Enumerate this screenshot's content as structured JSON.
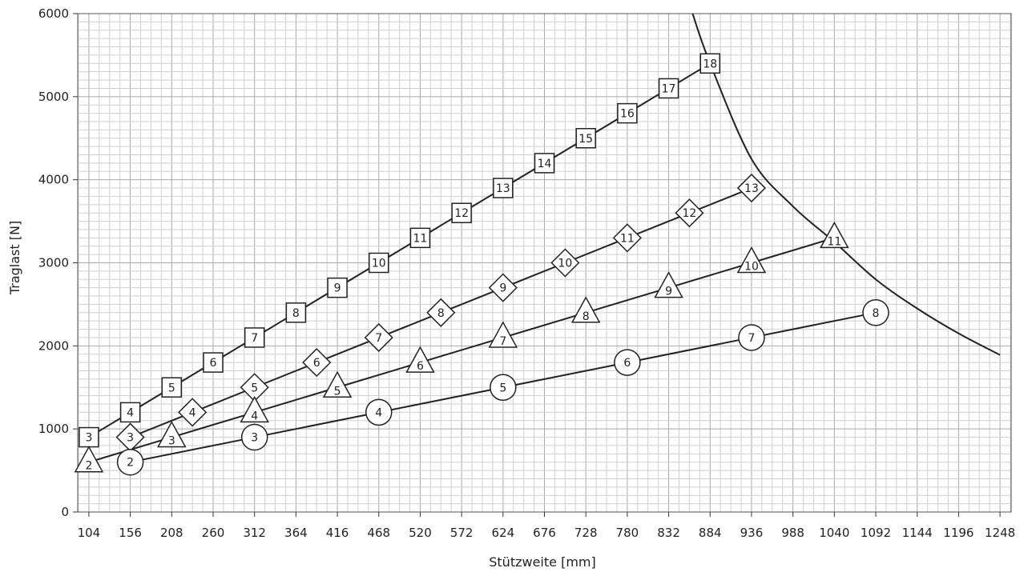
{
  "chart_data": {
    "type": "line",
    "title": "",
    "xlabel": "Stützweite [mm]",
    "ylabel": "Traglast [N]",
    "xlim": [
      90,
      1262
    ],
    "ylim": [
      0,
      6000
    ],
    "grid": true,
    "x_ticks": [
      104,
      156,
      208,
      260,
      312,
      364,
      416,
      468,
      520,
      572,
      624,
      676,
      728,
      780,
      832,
      884,
      936,
      988,
      1040,
      1092,
      1144,
      1196,
      1248
    ],
    "y_ticks": [
      0,
      1000,
      2000,
      3000,
      4000,
      5000,
      6000
    ],
    "series": [
      {
        "marker": "square",
        "points": [
          {
            "x": 104,
            "y": 900,
            "label": "3"
          },
          {
            "x": 156,
            "y": 1200,
            "label": "4"
          },
          {
            "x": 208,
            "y": 1500,
            "label": "5"
          },
          {
            "x": 260,
            "y": 1800,
            "label": "6"
          },
          {
            "x": 312,
            "y": 2100,
            "label": "7"
          },
          {
            "x": 364,
            "y": 2400,
            "label": "8"
          },
          {
            "x": 416,
            "y": 2700,
            "label": "9"
          },
          {
            "x": 468,
            "y": 3000,
            "label": "10"
          },
          {
            "x": 520,
            "y": 3300,
            "label": "11"
          },
          {
            "x": 572,
            "y": 3600,
            "label": "12"
          },
          {
            "x": 624,
            "y": 3900,
            "label": "13"
          },
          {
            "x": 676,
            "y": 4200,
            "label": "14"
          },
          {
            "x": 728,
            "y": 4500,
            "label": "15"
          },
          {
            "x": 780,
            "y": 4800,
            "label": "16"
          },
          {
            "x": 832,
            "y": 5100,
            "label": "17"
          },
          {
            "x": 884,
            "y": 5400,
            "label": "18"
          }
        ]
      },
      {
        "marker": "diamond",
        "points": [
          {
            "x": 156,
            "y": 900,
            "label": "3"
          },
          {
            "x": 234,
            "y": 1200,
            "label": "4"
          },
          {
            "x": 312,
            "y": 1500,
            "label": "5"
          },
          {
            "x": 390,
            "y": 1800,
            "label": "6"
          },
          {
            "x": 468,
            "y": 2100,
            "label": "7"
          },
          {
            "x": 546,
            "y": 2400,
            "label": "8"
          },
          {
            "x": 624,
            "y": 2700,
            "label": "9"
          },
          {
            "x": 702,
            "y": 3000,
            "label": "10"
          },
          {
            "x": 780,
            "y": 3300,
            "label": "11"
          },
          {
            "x": 858,
            "y": 3600,
            "label": "12"
          },
          {
            "x": 936,
            "y": 3900,
            "label": "13"
          }
        ]
      },
      {
        "marker": "triangle",
        "points": [
          {
            "x": 104,
            "y": 600,
            "label": "2"
          },
          {
            "x": 208,
            "y": 900,
            "label": "3"
          },
          {
            "x": 312,
            "y": 1200,
            "label": "4"
          },
          {
            "x": 416,
            "y": 1500,
            "label": "5"
          },
          {
            "x": 520,
            "y": 1800,
            "label": "6"
          },
          {
            "x": 624,
            "y": 2100,
            "label": "7"
          },
          {
            "x": 728,
            "y": 2400,
            "label": "8"
          },
          {
            "x": 832,
            "y": 2700,
            "label": "9"
          },
          {
            "x": 936,
            "y": 3000,
            "label": "10"
          },
          {
            "x": 1040,
            "y": 3300,
            "label": "11"
          }
        ]
      },
      {
        "marker": "circle",
        "points": [
          {
            "x": 156,
            "y": 600,
            "label": "2"
          },
          {
            "x": 312,
            "y": 900,
            "label": "3"
          },
          {
            "x": 468,
            "y": 1200,
            "label": "4"
          },
          {
            "x": 624,
            "y": 1500,
            "label": "5"
          },
          {
            "x": 780,
            "y": 1800,
            "label": "6"
          },
          {
            "x": 936,
            "y": 2100,
            "label": "7"
          },
          {
            "x": 1092,
            "y": 2400,
            "label": "8"
          }
        ]
      }
    ],
    "limit_curve": {
      "points": [
        [
          862,
          6000
        ],
        [
          884,
          5400
        ],
        [
          936,
          4250
        ],
        [
          988,
          3680
        ],
        [
          1040,
          3250
        ],
        [
          1092,
          2800
        ],
        [
          1144,
          2450
        ],
        [
          1196,
          2150
        ],
        [
          1248,
          1890
        ]
      ]
    }
  }
}
